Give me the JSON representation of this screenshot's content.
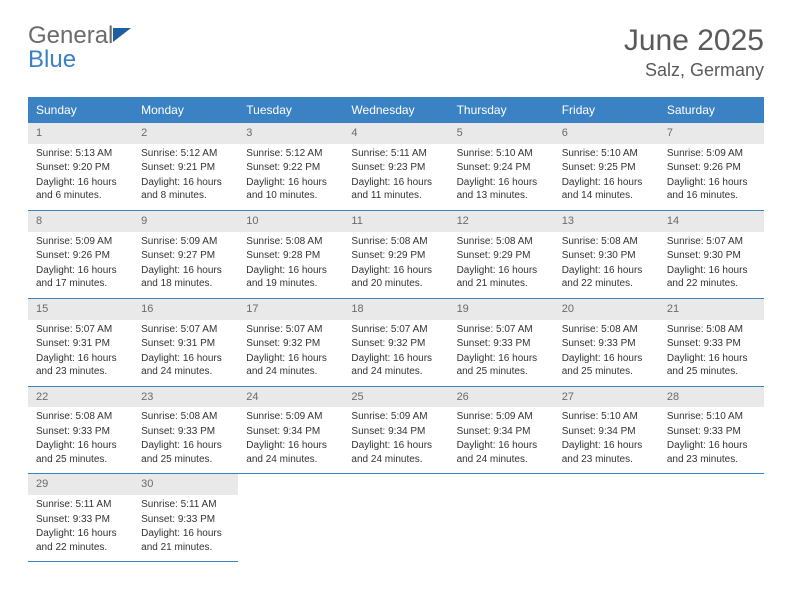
{
  "logo": {
    "general": "General",
    "blue": "Blue"
  },
  "title": "June 2025",
  "location": "Salz, Germany",
  "weekdays": [
    "Sunday",
    "Monday",
    "Tuesday",
    "Wednesday",
    "Thursday",
    "Friday",
    "Saturday"
  ],
  "colors": {
    "header_bg": "#3b82c4",
    "header_text": "#ffffff",
    "daynum_bg": "#e9e9e9",
    "daynum_text": "#6b6b6b",
    "body_text": "#333333",
    "divider": "#3b82c4",
    "page_bg": "#ffffff",
    "logo_general": "#6b6b6b",
    "logo_blue": "#3b82c4",
    "title_color": "#5a5a5a"
  },
  "typography": {
    "title_fontsize": 30,
    "location_fontsize": 18,
    "weekday_fontsize": 12,
    "daynum_fontsize": 11,
    "body_fontsize": 10,
    "logo_fontsize": 24
  },
  "layout": {
    "columns": 7,
    "rows": 5,
    "cell_min_height": 86
  },
  "days": [
    {
      "n": 1,
      "sunrise": "5:13 AM",
      "sunset": "9:20 PM",
      "daylight": "16 hours and 6 minutes."
    },
    {
      "n": 2,
      "sunrise": "5:12 AM",
      "sunset": "9:21 PM",
      "daylight": "16 hours and 8 minutes."
    },
    {
      "n": 3,
      "sunrise": "5:12 AM",
      "sunset": "9:22 PM",
      "daylight": "16 hours and 10 minutes."
    },
    {
      "n": 4,
      "sunrise": "5:11 AM",
      "sunset": "9:23 PM",
      "daylight": "16 hours and 11 minutes."
    },
    {
      "n": 5,
      "sunrise": "5:10 AM",
      "sunset": "9:24 PM",
      "daylight": "16 hours and 13 minutes."
    },
    {
      "n": 6,
      "sunrise": "5:10 AM",
      "sunset": "9:25 PM",
      "daylight": "16 hours and 14 minutes."
    },
    {
      "n": 7,
      "sunrise": "5:09 AM",
      "sunset": "9:26 PM",
      "daylight": "16 hours and 16 minutes."
    },
    {
      "n": 8,
      "sunrise": "5:09 AM",
      "sunset": "9:26 PM",
      "daylight": "16 hours and 17 minutes."
    },
    {
      "n": 9,
      "sunrise": "5:09 AM",
      "sunset": "9:27 PM",
      "daylight": "16 hours and 18 minutes."
    },
    {
      "n": 10,
      "sunrise": "5:08 AM",
      "sunset": "9:28 PM",
      "daylight": "16 hours and 19 minutes."
    },
    {
      "n": 11,
      "sunrise": "5:08 AM",
      "sunset": "9:29 PM",
      "daylight": "16 hours and 20 minutes."
    },
    {
      "n": 12,
      "sunrise": "5:08 AM",
      "sunset": "9:29 PM",
      "daylight": "16 hours and 21 minutes."
    },
    {
      "n": 13,
      "sunrise": "5:08 AM",
      "sunset": "9:30 PM",
      "daylight": "16 hours and 22 minutes."
    },
    {
      "n": 14,
      "sunrise": "5:07 AM",
      "sunset": "9:30 PM",
      "daylight": "16 hours and 22 minutes."
    },
    {
      "n": 15,
      "sunrise": "5:07 AM",
      "sunset": "9:31 PM",
      "daylight": "16 hours and 23 minutes."
    },
    {
      "n": 16,
      "sunrise": "5:07 AM",
      "sunset": "9:31 PM",
      "daylight": "16 hours and 24 minutes."
    },
    {
      "n": 17,
      "sunrise": "5:07 AM",
      "sunset": "9:32 PM",
      "daylight": "16 hours and 24 minutes."
    },
    {
      "n": 18,
      "sunrise": "5:07 AM",
      "sunset": "9:32 PM",
      "daylight": "16 hours and 24 minutes."
    },
    {
      "n": 19,
      "sunrise": "5:07 AM",
      "sunset": "9:33 PM",
      "daylight": "16 hours and 25 minutes."
    },
    {
      "n": 20,
      "sunrise": "5:08 AM",
      "sunset": "9:33 PM",
      "daylight": "16 hours and 25 minutes."
    },
    {
      "n": 21,
      "sunrise": "5:08 AM",
      "sunset": "9:33 PM",
      "daylight": "16 hours and 25 minutes."
    },
    {
      "n": 22,
      "sunrise": "5:08 AM",
      "sunset": "9:33 PM",
      "daylight": "16 hours and 25 minutes."
    },
    {
      "n": 23,
      "sunrise": "5:08 AM",
      "sunset": "9:33 PM",
      "daylight": "16 hours and 25 minutes."
    },
    {
      "n": 24,
      "sunrise": "5:09 AM",
      "sunset": "9:34 PM",
      "daylight": "16 hours and 24 minutes."
    },
    {
      "n": 25,
      "sunrise": "5:09 AM",
      "sunset": "9:34 PM",
      "daylight": "16 hours and 24 minutes."
    },
    {
      "n": 26,
      "sunrise": "5:09 AM",
      "sunset": "9:34 PM",
      "daylight": "16 hours and 24 minutes."
    },
    {
      "n": 27,
      "sunrise": "5:10 AM",
      "sunset": "9:34 PM",
      "daylight": "16 hours and 23 minutes."
    },
    {
      "n": 28,
      "sunrise": "5:10 AM",
      "sunset": "9:33 PM",
      "daylight": "16 hours and 23 minutes."
    },
    {
      "n": 29,
      "sunrise": "5:11 AM",
      "sunset": "9:33 PM",
      "daylight": "16 hours and 22 minutes."
    },
    {
      "n": 30,
      "sunrise": "5:11 AM",
      "sunset": "9:33 PM",
      "daylight": "16 hours and 21 minutes."
    }
  ],
  "labels": {
    "sunrise_prefix": "Sunrise: ",
    "sunset_prefix": "Sunset: ",
    "daylight_prefix": "Daylight: "
  }
}
